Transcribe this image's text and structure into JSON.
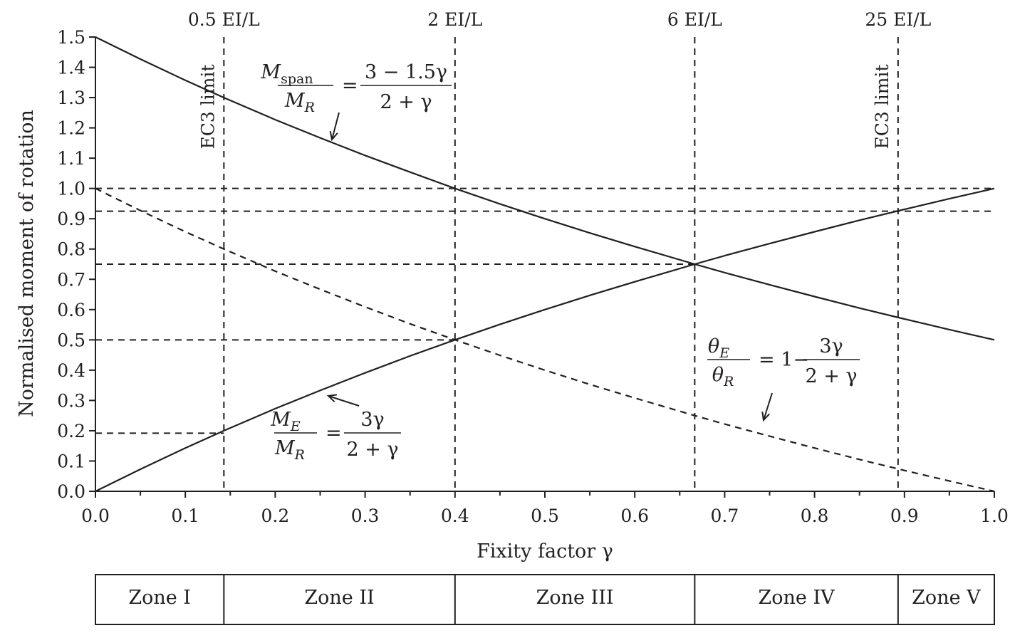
{
  "chart_data": {
    "type": "line",
    "xlabel": "Fixity factor γ",
    "ylabel": "Normalised moment of rotation",
    "xlim": [
      0.0,
      1.0
    ],
    "ylim": [
      0.0,
      1.5
    ],
    "x_ticks": [
      "0.0",
      "0.1",
      "0.2",
      "0.3",
      "0.4",
      "0.5",
      "0.6",
      "0.7",
      "0.8",
      "0.9",
      "1.0"
    ],
    "y_ticks": [
      "0.0",
      "0.1",
      "0.2",
      "0.3",
      "0.4",
      "0.5",
      "0.6",
      "0.7",
      "0.8",
      "0.9",
      "1.0",
      "1.1",
      "1.2",
      "1.3",
      "1.4",
      "1.5"
    ],
    "x_tick_values": [
      0.0,
      0.1,
      0.2,
      0.3,
      0.4,
      0.5,
      0.6,
      0.7,
      0.8,
      0.9,
      1.0
    ],
    "y_tick_values": [
      0.0,
      0.1,
      0.2,
      0.3,
      0.4,
      0.5,
      0.6,
      0.7,
      0.8,
      0.9,
      1.0,
      1.1,
      1.2,
      1.3,
      1.4,
      1.5
    ],
    "top_axis_ticks": [
      {
        "x": 0.1429,
        "label": "0.5 EI/L"
      },
      {
        "x": 0.4,
        "label": "2 EI/L"
      },
      {
        "x": 0.6667,
        "label": "6 EI/L"
      },
      {
        "x": 0.8929,
        "label": "25 EI/L"
      }
    ],
    "series": [
      {
        "style": "solid",
        "equation": {
          "lhs_num": "M",
          "lhs_num_sub": "span",
          "lhs_den": "M",
          "lhs_den_sub": "R",
          "rhs_prefix": "",
          "rhs_num": "3 − 1.5γ",
          "rhs_den": "2 + γ"
        },
        "x": [
          0.0,
          0.05,
          0.1,
          0.1429,
          0.2,
          0.25,
          0.3,
          0.35,
          0.4,
          0.45,
          0.5,
          0.55,
          0.6,
          0.6667,
          0.7,
          0.75,
          0.8,
          0.85,
          0.9,
          0.95,
          1.0
        ],
        "values": [
          1.5,
          1.427,
          1.357,
          1.3,
          1.227,
          1.167,
          1.109,
          1.054,
          1.0,
          0.949,
          0.9,
          0.853,
          0.808,
          0.75,
          0.722,
          0.682,
          0.643,
          0.605,
          0.569,
          0.534,
          0.5
        ]
      },
      {
        "style": "solid",
        "equation": {
          "lhs_num": "M",
          "lhs_num_sub": "E",
          "lhs_den": "M",
          "lhs_den_sub": "R",
          "rhs_prefix": "",
          "rhs_num": "3γ",
          "rhs_den": "2 + γ"
        },
        "x": [
          0.0,
          0.05,
          0.1,
          0.1429,
          0.2,
          0.25,
          0.3,
          0.35,
          0.4,
          0.45,
          0.5,
          0.55,
          0.6,
          0.6667,
          0.7,
          0.75,
          0.8,
          0.85,
          0.9,
          0.95,
          1.0
        ],
        "values": [
          0.0,
          0.073,
          0.143,
          0.2,
          0.273,
          0.333,
          0.391,
          0.447,
          0.5,
          0.551,
          0.6,
          0.647,
          0.692,
          0.75,
          0.778,
          0.818,
          0.857,
          0.895,
          0.931,
          0.966,
          1.0
        ]
      },
      {
        "style": "dashed",
        "equation": {
          "lhs_num": "θ",
          "lhs_num_sub": "E",
          "lhs_den": "θ",
          "lhs_den_sub": "R",
          "rhs_prefix": "= 1−",
          "rhs_num": "3γ",
          "rhs_den": "2 + γ"
        },
        "x": [
          0.0,
          0.05,
          0.1,
          0.1429,
          0.2,
          0.25,
          0.3,
          0.35,
          0.4,
          0.45,
          0.5,
          0.55,
          0.6,
          0.6667,
          0.7,
          0.75,
          0.8,
          0.85,
          0.9,
          0.95,
          1.0
        ],
        "values": [
          1.0,
          0.927,
          0.857,
          0.8,
          0.727,
          0.667,
          0.609,
          0.553,
          0.5,
          0.449,
          0.4,
          0.353,
          0.308,
          0.25,
          0.222,
          0.182,
          0.143,
          0.105,
          0.069,
          0.034,
          0.0
        ]
      }
    ],
    "vertical_reference_lines": [
      {
        "x": 0.1429,
        "label": "EC3 limit"
      },
      {
        "x": 0.4,
        "label": ""
      },
      {
        "x": 0.6667,
        "label": ""
      },
      {
        "x": 0.8929,
        "label": "EC3 limit"
      }
    ],
    "horizontal_reference_lines": [
      {
        "y": 1.0,
        "x_end": 1.0
      },
      {
        "y": 0.925,
        "x_end": 1.0
      },
      {
        "y": 0.75,
        "x_end": 0.6667
      },
      {
        "y": 0.5,
        "x_end": 0.4
      },
      {
        "y": 0.192,
        "x_end": 0.1429
      }
    ],
    "zones": [
      {
        "label": "Zone I",
        "x_start": 0.0,
        "x_end": 0.1429
      },
      {
        "label": "Zone II",
        "x_start": 0.1429,
        "x_end": 0.4
      },
      {
        "label": "Zone III",
        "x_start": 0.4,
        "x_end": 0.6667
      },
      {
        "label": "Zone IV",
        "x_start": 0.6667,
        "x_end": 0.8929
      },
      {
        "label": "Zone V",
        "x_start": 0.8929,
        "x_end": 1.0
      }
    ],
    "grid": false,
    "legend": "none",
    "colors": {
      "ink": "#231f20"
    }
  }
}
